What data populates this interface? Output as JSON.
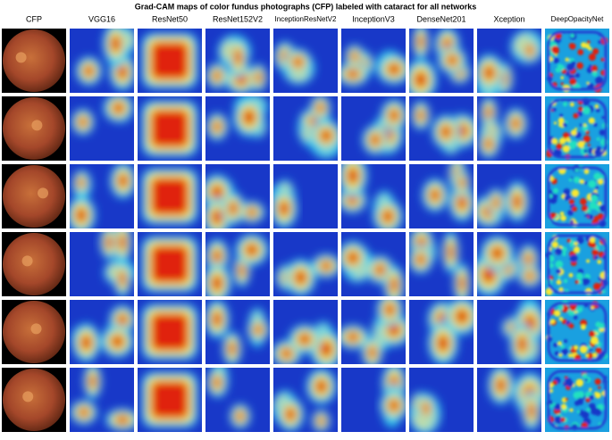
{
  "title": "Grad-CAM maps of color fundus photographs (CFP) labeled with cataract for all networks",
  "columns": [
    "CFP",
    "VGG16",
    "ResNet50",
    "ResNet152V2",
    "InceptionResNetV2",
    "InceptionV3",
    "DenseNet201",
    "Xception",
    "DeepOpacityNet"
  ]
}
